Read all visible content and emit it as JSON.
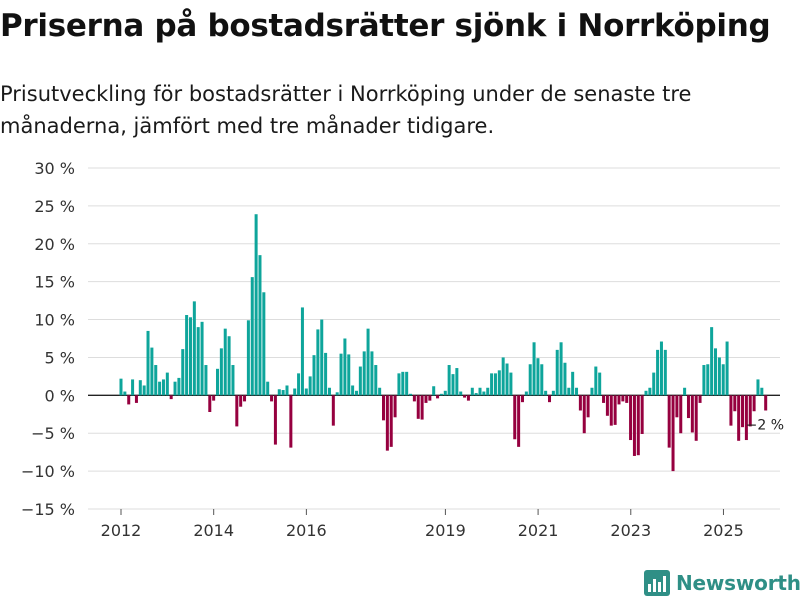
{
  "header": {
    "title": "Priserna på bostadsrätter sjönk i Norrköping",
    "subtitle": "Prisutveckling för bostadsrätter i Norrköping under de senaste tre månaderna, jämfört med tre månader tidigare."
  },
  "brand": {
    "name": "Newsworthy"
  },
  "colors": {
    "positive": "#0ea59b",
    "negative": "#96003f",
    "grid": "#dddddd",
    "zero": "#222222"
  },
  "chart_data": {
    "type": "bar",
    "title": "Priserna på bostadsrätter sjönk i Norrköping",
    "xlabel": "",
    "ylabel": "",
    "ylim": [
      -15,
      30
    ],
    "yticks": [
      -15,
      -10,
      -5,
      0,
      5,
      10,
      15,
      20,
      25,
      30
    ],
    "ytick_labels": [
      "−15 %",
      "−10 %",
      "−5 %",
      "0 %",
      "5 %",
      "10 %",
      "15 %",
      "20 %",
      "25 %",
      "30 %"
    ],
    "x_range": [
      2011.75,
      2026.05
    ],
    "xticks": [
      2012,
      2014,
      2016,
      2019,
      2021,
      2023,
      2025
    ],
    "xtick_labels": [
      "2012",
      "2014",
      "2016",
      "2019",
      "2021",
      "2023",
      "2025"
    ],
    "start": 2012,
    "step": 0.0833,
    "annotation": {
      "text": "−2 %",
      "value": -2
    },
    "values": [
      2.2,
      0.5,
      -1.2,
      2.1,
      -1.0,
      2.0,
      1.3,
      8.5,
      6.3,
      4.0,
      1.8,
      2.1,
      3.0,
      -0.5,
      1.8,
      2.3,
      6.1,
      10.6,
      10.3,
      12.4,
      9.0,
      9.7,
      4.0,
      -2.2,
      -0.7,
      3.5,
      6.2,
      8.8,
      7.8,
      4.0,
      -4.1,
      -1.5,
      -0.8,
      9.9,
      15.6,
      23.9,
      18.5,
      13.6,
      1.8,
      -0.8,
      -6.5,
      0.8,
      0.7,
      1.3,
      -6.9,
      0.9,
      2.9,
      11.6,
      0.9,
      2.5,
      5.3,
      8.7,
      10.0,
      5.6,
      1.0,
      -4.0,
      0.4,
      5.5,
      7.5,
      5.4,
      1.3,
      0.6,
      3.8,
      5.8,
      8.8,
      5.8,
      4.0,
      1.0,
      -3.3,
      -7.3,
      -6.8,
      -2.9,
      2.9,
      3.1,
      3.1,
      0.2,
      -0.8,
      -3.1,
      -3.2,
      -1.0,
      -0.7,
      1.2,
      -0.4,
      0.2,
      0.6,
      4.0,
      2.8,
      3.6,
      0.5,
      -0.3,
      -0.7,
      1.0,
      0.3,
      1.0,
      0.5,
      1.0,
      2.9,
      2.9,
      3.3,
      5.0,
      4.2,
      3.0,
      -5.8,
      -6.8,
      -0.9,
      0.5,
      4.1,
      7.0,
      4.9,
      4.1,
      0.6,
      -0.9,
      0.6,
      6.0,
      7.0,
      4.3,
      1.0,
      3.1,
      1.0,
      -2.0,
      -5.0,
      -2.9,
      1.0,
      3.8,
      3.0,
      -1.0,
      -2.7,
      -4.0,
      -3.9,
      -1.2,
      -0.8,
      -1.0,
      -5.9,
      -8.0,
      -7.9,
      -5.1,
      0.6,
      1.0,
      3.0,
      6.0,
      7.1,
      6.0,
      -6.9,
      -10.0,
      -2.9,
      -5.0,
      1.0,
      -3.0,
      -4.9,
      -6.0,
      -1.0,
      4.0,
      4.1,
      9.0,
      6.2,
      5.0,
      4.1,
      7.1,
      -4.0,
      -2.1,
      -6.0,
      -4.2,
      -5.9,
      -4.1,
      -2.1,
      2.1,
      1.0,
      -2.0
    ]
  }
}
